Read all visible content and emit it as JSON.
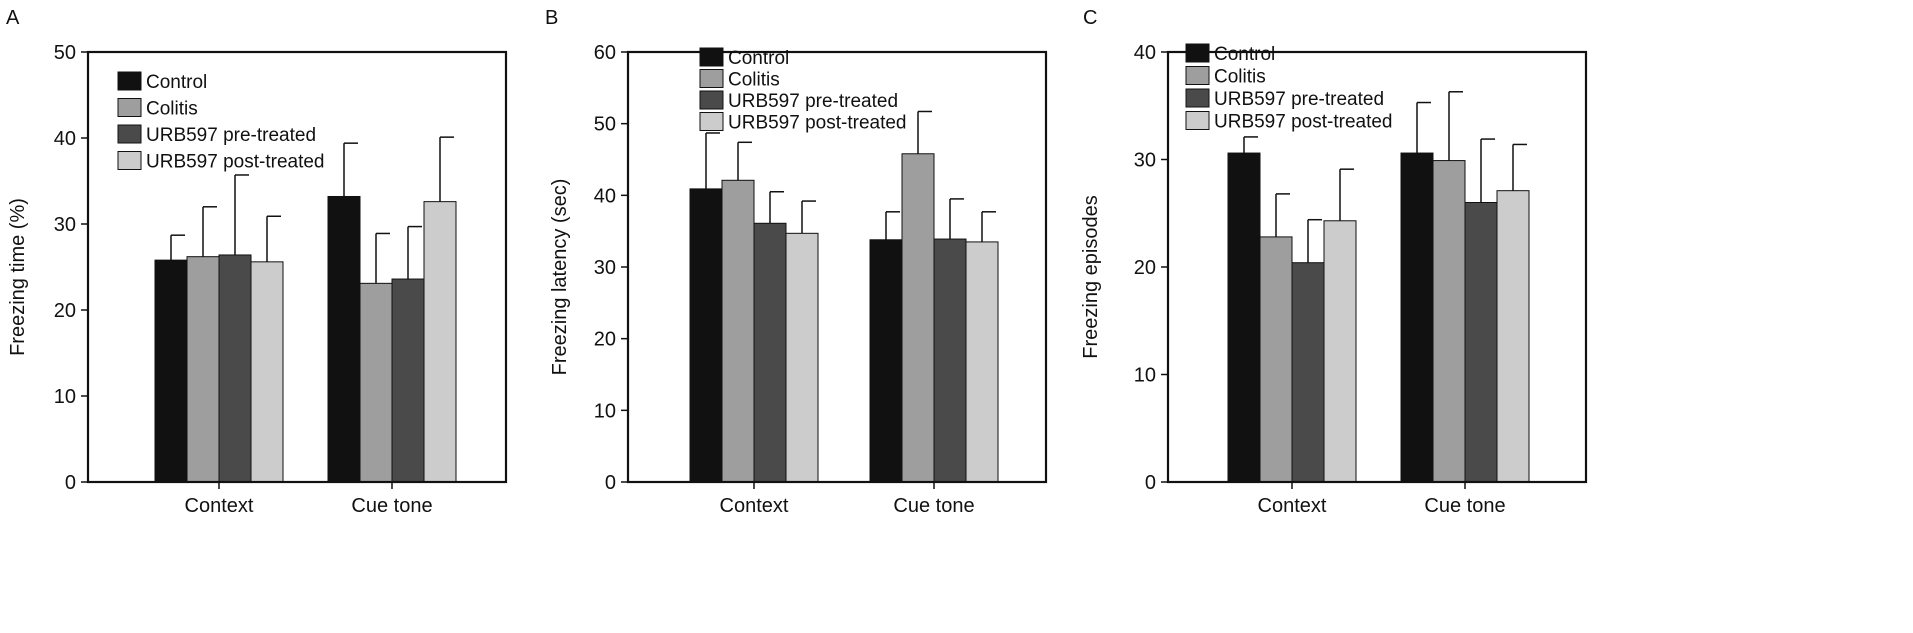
{
  "colors": {
    "control": "#111111",
    "colitis": "#9e9e9e",
    "urb597_pre": "#4a4a4a",
    "urb597_post": "#cccccc",
    "axis": "#111111"
  },
  "chart_data": [
    {
      "type": "bar",
      "panel": "A",
      "categories": [
        "Context",
        "Cue tone"
      ],
      "ylabel": "Freezing time        (%)",
      "ylim": [
        0,
        50
      ],
      "yticks": [
        "0",
        "10",
        "20",
        "30",
        "40",
        "50"
      ],
      "legend_placement": "top-left",
      "series": [
        {
          "name": "Control",
          "values": [
            25.8,
            33.2
          ],
          "errors": [
            2.9,
            6.2
          ]
        },
        {
          "name": "Colitis",
          "values": [
            26.2,
            23.1
          ],
          "errors": [
            5.8,
            5.8
          ]
        },
        {
          "name": "URB597 pre-treated",
          "values": [
            26.4,
            23.6
          ],
          "errors": [
            9.3,
            6.1
          ]
        },
        {
          "name": "URB597 post-treated",
          "values": [
            25.6,
            32.6
          ],
          "errors": [
            5.3,
            7.5
          ]
        }
      ]
    },
    {
      "type": "bar",
      "panel": "B",
      "categories": [
        "Context",
        "Cue tone"
      ],
      "ylabel": "Freezing latency (sec)",
      "ylim": [
        0,
        60
      ],
      "yticks": [
        "0",
        "10",
        "20",
        "30",
        "40",
        "50",
        "60"
      ],
      "legend_placement": "top-left",
      "series": [
        {
          "name": "Control",
          "values": [
            40.9,
            33.8
          ],
          "errors": [
            7.8,
            3.9
          ]
        },
        {
          "name": "Colitis",
          "values": [
            42.1,
            45.8
          ],
          "errors": [
            5.3,
            5.9
          ]
        },
        {
          "name": "URB597 pre-treated",
          "values": [
            36.1,
            33.9
          ],
          "errors": [
            4.4,
            5.6
          ]
        },
        {
          "name": "URB597 post-treated",
          "values": [
            34.7,
            33.5
          ],
          "errors": [
            4.5,
            4.2
          ]
        }
      ]
    },
    {
      "type": "bar",
      "panel": "C",
      "categories": [
        "Context",
        "Cue tone"
      ],
      "ylabel": "Freezing episodes",
      "ylim": [
        0,
        40
      ],
      "yticks": [
        "0",
        "10",
        "20",
        "30",
        "40"
      ],
      "legend_placement": "top-left",
      "series": [
        {
          "name": "Control",
          "values": [
            30.6,
            30.6
          ],
          "errors": [
            1.5,
            4.7
          ]
        },
        {
          "name": "Colitis",
          "values": [
            22.8,
            29.9
          ],
          "errors": [
            4.0,
            6.4
          ]
        },
        {
          "name": "URB597 pre-treated",
          "values": [
            20.4,
            26.0
          ],
          "errors": [
            4.0,
            5.9
          ]
        },
        {
          "name": "URB597 post-treated",
          "values": [
            24.3,
            27.1
          ],
          "errors": [
            4.8,
            4.3
          ]
        }
      ]
    }
  ]
}
